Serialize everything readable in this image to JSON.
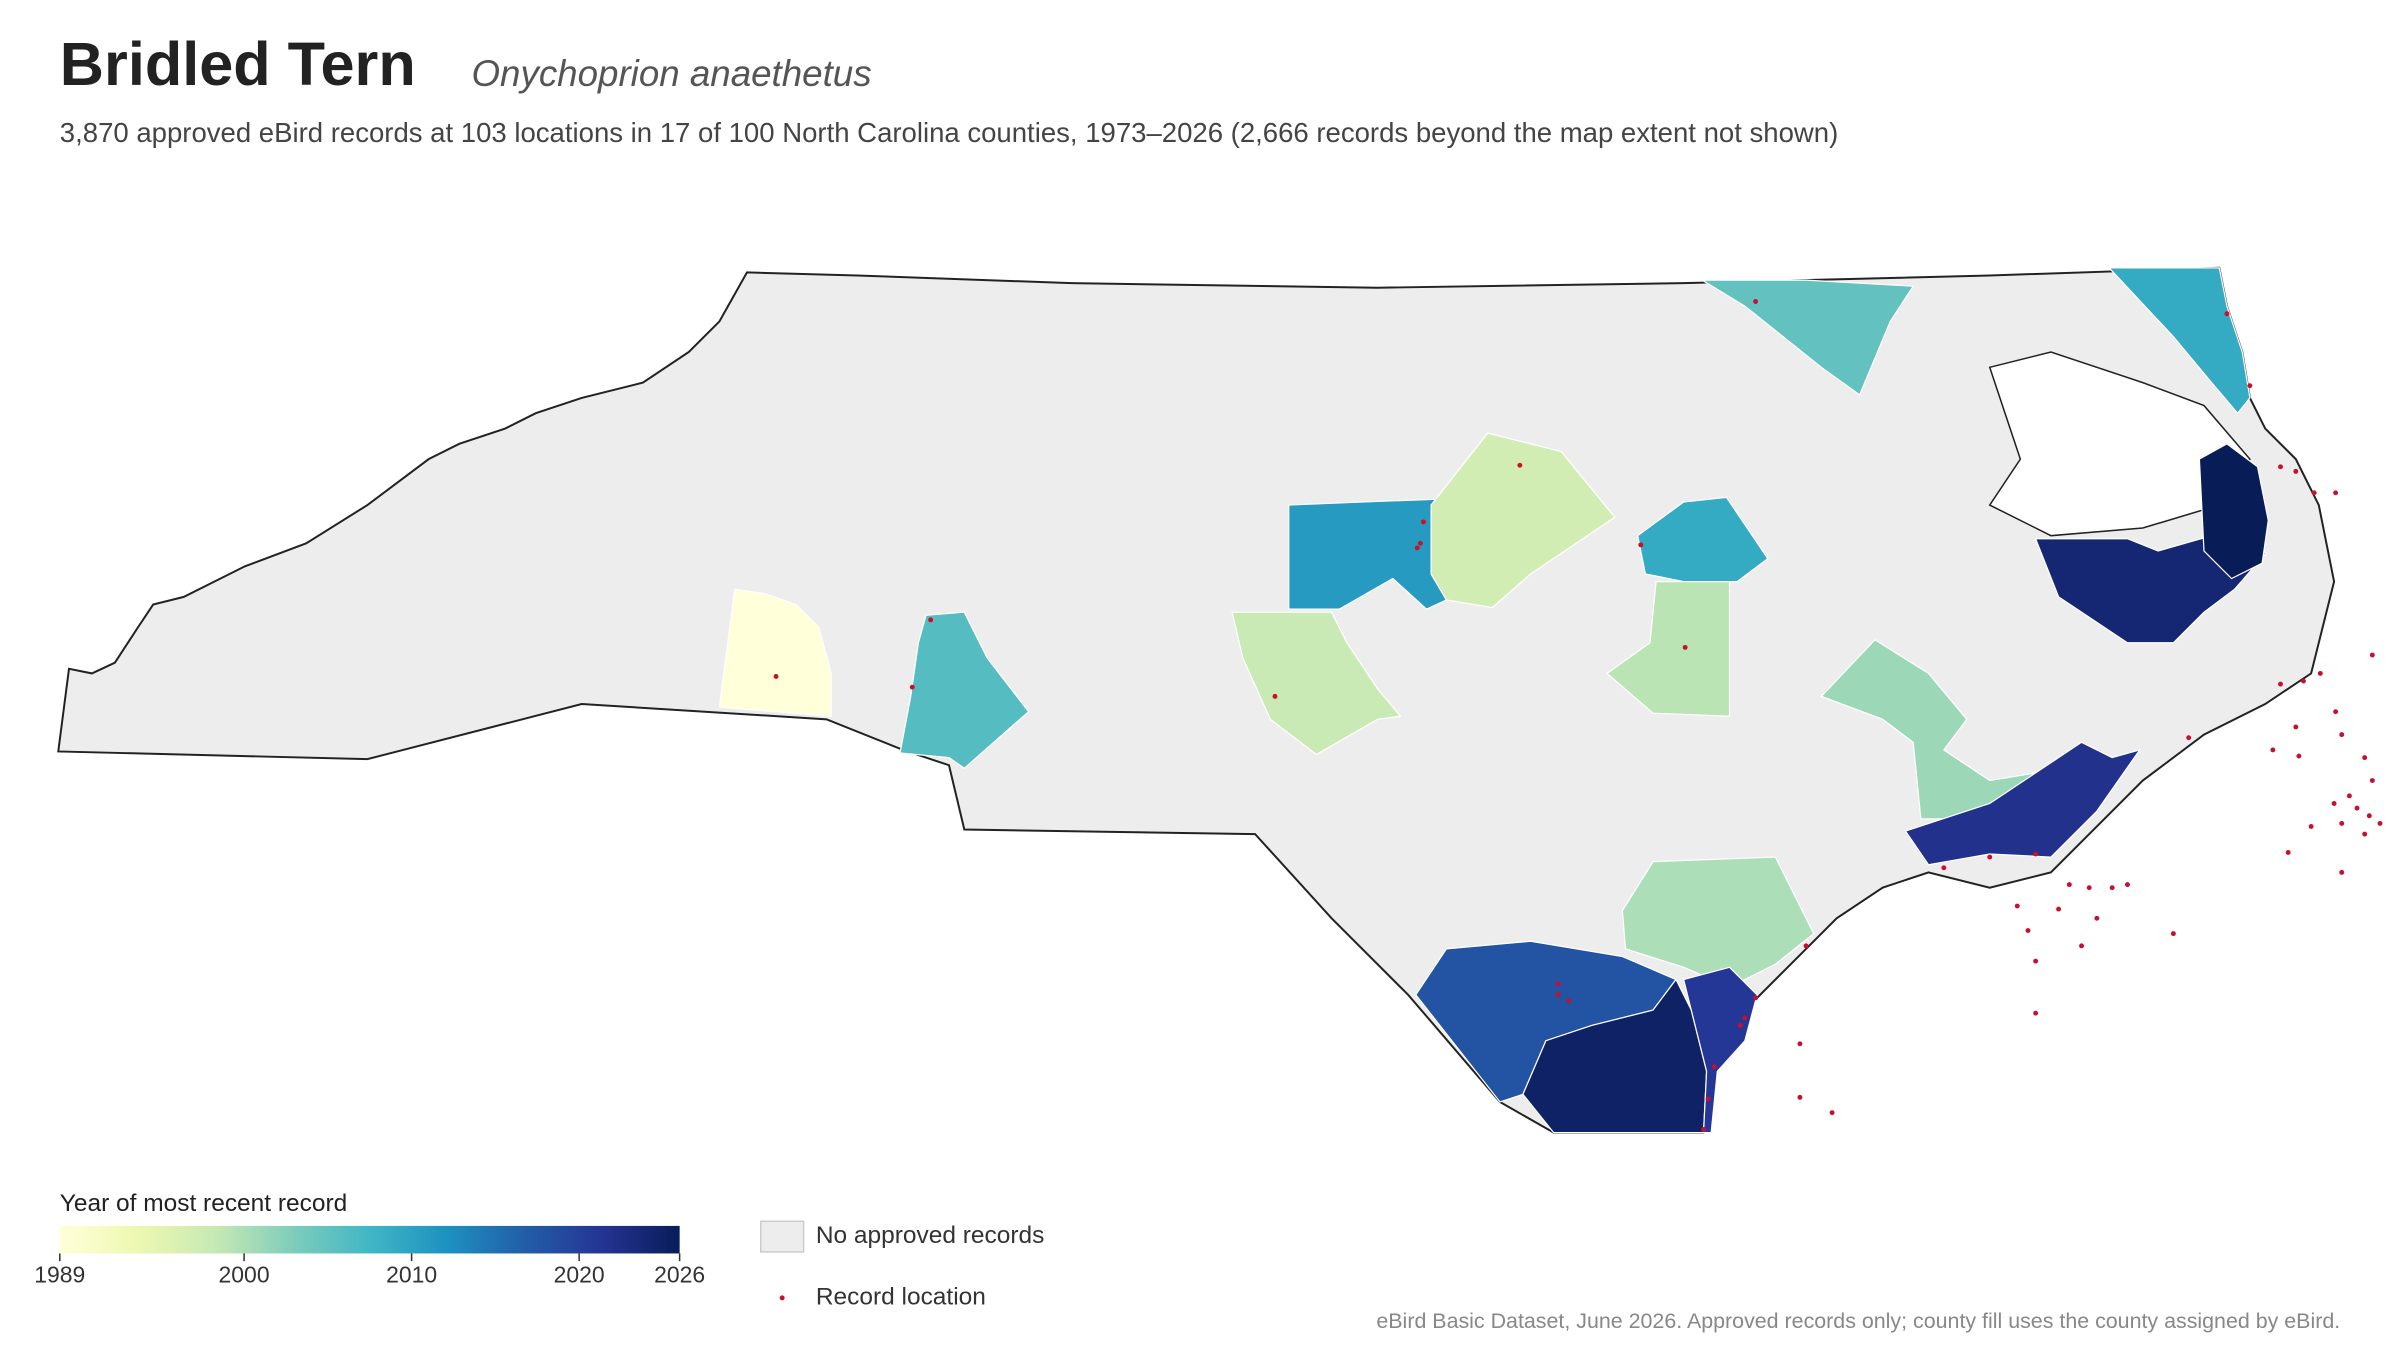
{
  "header": {
    "title": "Bridled Tern",
    "species": "Onychoprion anaethetus",
    "subtitle": "3,870 approved eBird records at 103 locations in 17 of 100 North Carolina counties, 1973–2026 (2,666 records beyond the map extent not shown)"
  },
  "map": {
    "counties": [
      {
        "year": 1989
      },
      {
        "year": 2006
      },
      {
        "year": 2011
      },
      {
        "year": 1998
      },
      {
        "year": 1997
      },
      {
        "year": 2009
      },
      {
        "year": 1999
      },
      {
        "year": 2005
      },
      {
        "year": 2009
      },
      {
        "year": 2001
      },
      {
        "year": 2022
      },
      {
        "year": 2000
      },
      {
        "year": 2018
      },
      {
        "year": 2025
      },
      {
        "year": 2021
      },
      {
        "year": 2024
      },
      {
        "year": 2026
      }
    ],
    "colors": [
      "#ffffd9",
      "#edf8b1",
      "#c7e9b4",
      "#7fcdbb",
      "#41b6c4",
      "#1d91c0",
      "#225ea8",
      "#253494",
      "#081d58"
    ],
    "no_record_color": "#ededed",
    "record_color": "#c8102e"
  },
  "legend": {
    "title": "Year of most recent record",
    "range": [
      1989,
      2026
    ],
    "ticks": [
      1989,
      2000,
      2010,
      2020,
      2026
    ],
    "no_records": "No approved records",
    "record_location": "Record location"
  },
  "footer": "eBird Basic Dataset, June 2026. Approved records only; county fill uses the county assigned by eBird."
}
